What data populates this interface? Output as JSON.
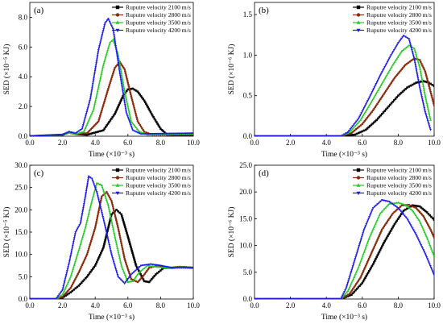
{
  "chart_data": [
    {
      "type": "line",
      "panel": "(a)",
      "xlabel": "Time (×10⁻³ s)",
      "ylabel": "SED (×10⁻⁵ KJ)",
      "xlim": [
        0,
        10
      ],
      "ylim": [
        0,
        9
      ],
      "xticks": [
        "0.0",
        "2.0",
        "4.0",
        "6.0",
        "8.0",
        "10.0"
      ],
      "yticks": [
        "0.0",
        "2.0",
        "4.0",
        "6.0",
        "8.0"
      ],
      "xtick_values": [
        0,
        2,
        4,
        6,
        8,
        10
      ],
      "ytick_values": [
        0,
        2,
        4,
        6,
        8
      ],
      "legend_position": "top-right",
      "series": [
        {
          "name": "Ruputre velocity 2100 m/s",
          "color": "#000000",
          "marker": "square",
          "x": [
            0,
            1,
            2,
            2.4,
            2.8,
            3.5,
            4.5,
            5.2,
            5.7,
            6.0,
            6.3,
            6.6,
            7.0,
            7.5,
            8.0,
            8.4,
            9.0,
            10.0
          ],
          "y": [
            0,
            0.05,
            0.1,
            0.25,
            0.15,
            0.1,
            0.4,
            1.5,
            2.7,
            3.15,
            3.2,
            3.0,
            2.4,
            1.4,
            0.5,
            0.1,
            0.05,
            0.05
          ]
        },
        {
          "name": "Ruputre velocity 2800 m/s",
          "color": "#8b2a0a",
          "marker": "circle",
          "x": [
            0,
            1,
            2,
            2.4,
            2.8,
            3.5,
            4.2,
            4.8,
            5.2,
            5.5,
            5.8,
            6.2,
            6.6,
            7.0,
            7.5,
            8.0,
            10.0
          ],
          "y": [
            0,
            0.05,
            0.1,
            0.25,
            0.15,
            0.2,
            1.0,
            3.2,
            4.6,
            5.0,
            4.5,
            2.7,
            1.0,
            0.3,
            0.1,
            0.1,
            0.1
          ]
        },
        {
          "name": "Ruputre velocity 3500 m/s",
          "color": "#22cc22",
          "marker": "triangle",
          "x": [
            0,
            1,
            2,
            2.4,
            2.8,
            3.3,
            3.9,
            4.5,
            4.9,
            5.1,
            5.4,
            5.8,
            6.2,
            6.7,
            7.2,
            10.0
          ],
          "y": [
            0,
            0.05,
            0.1,
            0.25,
            0.15,
            0.3,
            1.8,
            4.8,
            6.3,
            6.5,
            5.5,
            3.0,
            1.0,
            0.3,
            0.1,
            0.15
          ]
        },
        {
          "name": "Ruputre velocity 4200 m/s",
          "color": "#1a1aee",
          "marker": "triangle-down",
          "x": [
            0,
            1,
            2,
            2.4,
            2.8,
            3.2,
            3.7,
            4.2,
            4.6,
            4.8,
            5.1,
            5.5,
            5.9,
            6.3,
            6.8,
            10.0
          ],
          "y": [
            0,
            0.05,
            0.1,
            0.3,
            0.2,
            0.5,
            2.5,
            5.8,
            7.6,
            7.9,
            7.2,
            4.3,
            1.6,
            0.4,
            0.15,
            0.2
          ]
        }
      ]
    },
    {
      "type": "line",
      "panel": "(b)",
      "xlabel": "Time (×10⁻³ s)",
      "ylabel": "SED (×10⁻⁶ KJ)",
      "xlim": [
        0,
        10
      ],
      "ylim": [
        0,
        1.65
      ],
      "xticks": [
        "0.0",
        "2.0",
        "4.0",
        "6.0",
        "8.0",
        "10.0"
      ],
      "yticks": [
        "0.0",
        "0.5",
        "1.0",
        "1.5"
      ],
      "xtick_values": [
        0,
        2,
        4,
        6,
        8,
        10
      ],
      "ytick_values": [
        0,
        0.5,
        1.0,
        1.5
      ],
      "legend_position": "top-right",
      "series": [
        {
          "name": "Ruputre velocity 2100 m/s",
          "color": "#000000",
          "marker": "square",
          "x": [
            0,
            4.8,
            5.6,
            6.2,
            6.8,
            7.4,
            8.0,
            8.5,
            9.0,
            9.4,
            9.7,
            10.0
          ],
          "y": [
            0,
            0,
            0.02,
            0.08,
            0.2,
            0.35,
            0.5,
            0.6,
            0.66,
            0.68,
            0.66,
            0.62
          ]
        },
        {
          "name": "Ruputre velocity 2800 m/s",
          "color": "#8b2a0a",
          "marker": "circle",
          "x": [
            0,
            4.8,
            5.4,
            6.0,
            6.6,
            7.2,
            7.8,
            8.4,
            8.9,
            9.2,
            9.5,
            9.8,
            10.0
          ],
          "y": [
            0,
            0,
            0.04,
            0.15,
            0.32,
            0.52,
            0.72,
            0.88,
            0.96,
            0.94,
            0.8,
            0.55,
            0.38
          ]
        },
        {
          "name": "Ruputre velocity 3500 m/s",
          "color": "#22cc22",
          "marker": "triangle",
          "x": [
            0,
            4.8,
            5.3,
            5.9,
            6.5,
            7.1,
            7.7,
            8.2,
            8.6,
            8.9,
            9.2,
            9.5,
            9.8
          ],
          "y": [
            0,
            0,
            0.05,
            0.2,
            0.42,
            0.65,
            0.88,
            1.05,
            1.12,
            1.08,
            0.85,
            0.5,
            0.2
          ]
        },
        {
          "name": "Ruputre velocity 4200 m/s",
          "color": "#1a1aee",
          "marker": "triangle-down",
          "x": [
            0,
            4.8,
            5.2,
            5.8,
            6.4,
            7.0,
            7.6,
            8.0,
            8.3,
            8.6,
            8.9,
            9.2,
            9.5,
            9.8
          ],
          "y": [
            0,
            0,
            0.05,
            0.22,
            0.48,
            0.75,
            1.0,
            1.15,
            1.24,
            1.2,
            0.95,
            0.6,
            0.3,
            0.08
          ]
        }
      ]
    },
    {
      "type": "line",
      "panel": "(c)",
      "xlabel": "Time (×10⁻³ s)",
      "ylabel": "SED (×10⁻⁵ KJ)",
      "xlim": [
        0,
        10
      ],
      "ylim": [
        0,
        30
      ],
      "xticks": [
        "0.0",
        "2.0",
        "4.0",
        "6.0",
        "8.0",
        "10.0"
      ],
      "yticks": [
        "0.0",
        "5.0",
        "10.0",
        "15.0",
        "20.0",
        "25.0",
        "30.0"
      ],
      "xtick_values": [
        0,
        2,
        4,
        6,
        8,
        10
      ],
      "ytick_values": [
        0,
        5,
        10,
        15,
        20,
        25,
        30
      ],
      "legend_position": "top-right",
      "series": [
        {
          "name": "Ruputre velocity 2100 m/s",
          "color": "#000000",
          "marker": "square",
          "x": [
            0,
            1.6,
            2.0,
            2.5,
            3.0,
            3.5,
            4.0,
            4.5,
            5.0,
            5.3,
            5.6,
            6.0,
            6.5,
            7.0,
            7.3,
            7.7,
            8.2,
            8.7,
            9.2,
            10.0
          ],
          "y": [
            0,
            0,
            0.3,
            1.5,
            3.0,
            5.0,
            7.5,
            11.5,
            19.0,
            20.0,
            19.0,
            14.0,
            7.5,
            4.0,
            3.8,
            5.5,
            7.0,
            7.0,
            7.2,
            7.0
          ]
        },
        {
          "name": "Ruputre velocity 2800 m/s",
          "color": "#8b2a0a",
          "marker": "circle",
          "x": [
            0,
            1.6,
            2.0,
            2.5,
            3.0,
            3.5,
            4.0,
            4.4,
            4.7,
            5.0,
            5.4,
            5.8,
            6.2,
            6.6,
            6.9,
            7.3,
            7.8,
            8.5,
            9.2,
            10.0
          ],
          "y": [
            0,
            0,
            0.5,
            2.5,
            6.0,
            10.0,
            16.0,
            23.0,
            24.0,
            22.0,
            16.0,
            9.0,
            4.5,
            3.8,
            5.0,
            7.0,
            7.5,
            7.0,
            7.2,
            7.0
          ]
        },
        {
          "name": "Ruputre velocity 3500 m/s",
          "color": "#22cc22",
          "marker": "triangle",
          "x": [
            0,
            1.6,
            2.0,
            2.5,
            3.0,
            3.4,
            3.8,
            4.1,
            4.4,
            4.8,
            5.2,
            5.6,
            6.0,
            6.3,
            6.7,
            7.2,
            7.8,
            8.5,
            9.2,
            10.0
          ],
          "y": [
            0,
            0,
            1.0,
            5.0,
            11.0,
            16.0,
            22.0,
            26.0,
            25.5,
            21.0,
            14.0,
            7.5,
            3.8,
            4.0,
            6.0,
            7.5,
            7.2,
            7.0,
            7.2,
            7.0
          ]
        },
        {
          "name": "Ruputre velocity 4200 m/s",
          "color": "#1a1aee",
          "marker": "triangle-down",
          "x": [
            0,
            1.6,
            2.0,
            2.4,
            2.8,
            3.1,
            3.4,
            3.6,
            3.8,
            4.1,
            4.5,
            5.0,
            5.4,
            5.8,
            6.2,
            6.8,
            7.4,
            8.0,
            8.7,
            10.0
          ],
          "y": [
            0,
            0,
            2.0,
            8.0,
            15.0,
            17.0,
            23.0,
            27.5,
            27.0,
            24.0,
            18.0,
            10.0,
            5.0,
            3.5,
            5.5,
            7.5,
            7.8,
            7.5,
            7.0,
            7.0
          ]
        }
      ]
    },
    {
      "type": "line",
      "panel": "(d)",
      "xlabel": "Time (×10⁻³ s)",
      "ylabel": "SED (×10⁻⁶ KJ)",
      "xlim": [
        0,
        10
      ],
      "ylim": [
        0,
        25
      ],
      "xticks": [
        "0.0",
        "2.0",
        "4.0",
        "6.0",
        "8.0",
        "10.0"
      ],
      "yticks": [
        "0.0",
        "5.0",
        "10.0",
        "15.0",
        "20.0",
        "25.0"
      ],
      "xtick_values": [
        0,
        2,
        4,
        6,
        8,
        10
      ],
      "ytick_values": [
        0,
        5,
        10,
        15,
        20,
        25
      ],
      "legend_position": "top-right",
      "series": [
        {
          "name": "Ruputre velocity 2100 m/s",
          "color": "#000000",
          "marker": "square",
          "x": [
            0,
            4.8,
            5.4,
            6.0,
            6.6,
            7.2,
            7.8,
            8.3,
            8.8,
            9.2,
            9.6,
            10.0
          ],
          "y": [
            0,
            0,
            0.8,
            3.0,
            6.5,
            10.5,
            14.0,
            16.5,
            17.5,
            17.3,
            16.2,
            14.8
          ]
        },
        {
          "name": "Ruputre velocity 2800 m/s",
          "color": "#8b2a0a",
          "marker": "circle",
          "x": [
            0,
            4.8,
            5.3,
            5.9,
            6.5,
            7.1,
            7.7,
            8.2,
            8.6,
            9.0,
            9.4,
            9.8,
            10.0
          ],
          "y": [
            0,
            0,
            1.0,
            4.0,
            8.5,
            13.0,
            16.0,
            17.5,
            17.6,
            17.0,
            15.5,
            13.0,
            11.5
          ]
        },
        {
          "name": "Ruputre velocity 3500 m/s",
          "color": "#22cc22",
          "marker": "triangle",
          "x": [
            0,
            4.8,
            5.2,
            5.8,
            6.4,
            7.0,
            7.5,
            8.0,
            8.4,
            8.8,
            9.2,
            9.6,
            10.0
          ],
          "y": [
            0,
            0,
            1.5,
            6.0,
            11.5,
            16.0,
            17.8,
            18.0,
            17.6,
            16.5,
            14.5,
            11.5,
            8.0
          ]
        },
        {
          "name": "Ruputre velocity 4200 m/s",
          "color": "#1a1aee",
          "marker": "triangle-down",
          "x": [
            0,
            4.8,
            5.1,
            5.6,
            6.1,
            6.6,
            7.1,
            7.5,
            8.0,
            8.5,
            9.0,
            9.5,
            10.0
          ],
          "y": [
            0,
            0,
            2.0,
            7.5,
            13.0,
            17.0,
            18.5,
            18.2,
            17.0,
            15.0,
            12.0,
            8.5,
            4.5
          ]
        }
      ]
    }
  ]
}
